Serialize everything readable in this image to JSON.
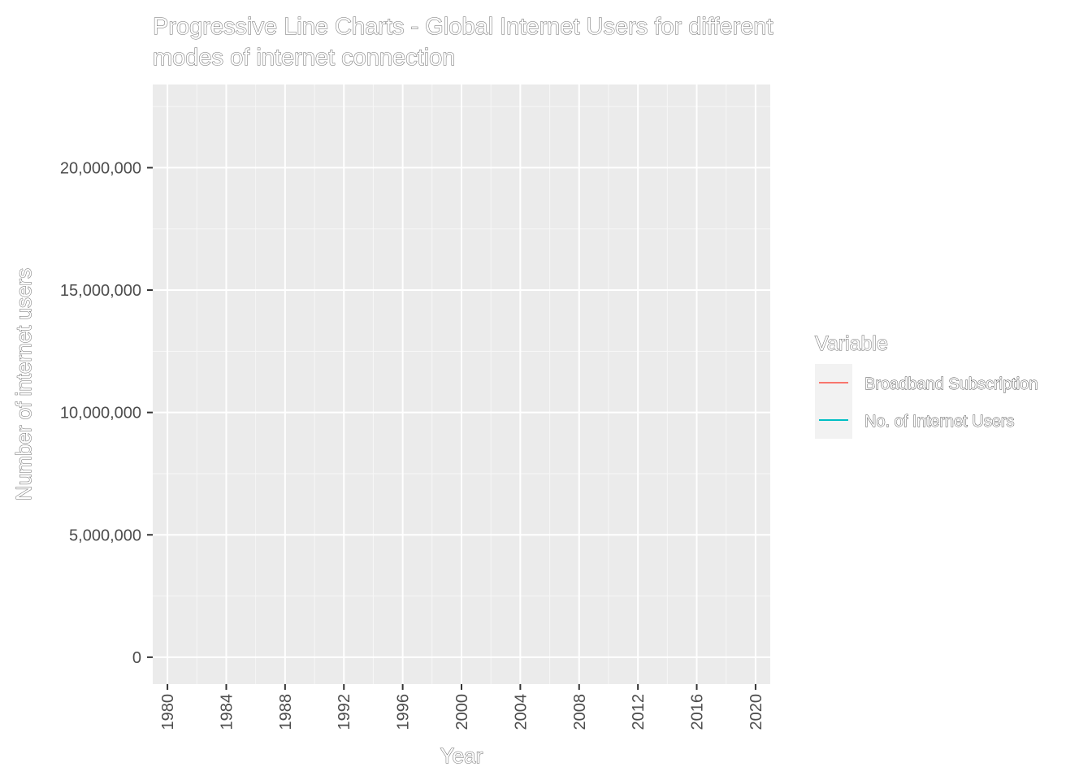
{
  "chart_data": {
    "type": "line",
    "title": "Progressive Line Charts - Global Internet Users for different modes of internet connection",
    "title_lines": [
      "Progressive Line Charts - Global Internet Users for different",
      "modes of internet connection"
    ],
    "xlabel": "Year",
    "ylabel": "Number of internet users",
    "x_ticks": [
      1980,
      1984,
      1988,
      1992,
      1996,
      2000,
      2004,
      2008,
      2012,
      2016,
      2020
    ],
    "y_ticks": [
      0,
      5000000,
      10000000,
      15000000,
      20000000
    ],
    "y_tick_labels": [
      "0",
      "5,000,000",
      "10,000,000",
      "15,000,000",
      "20,000,000"
    ],
    "xlim": [
      1979,
      2021
    ],
    "ylim": [
      -1100000,
      23400000
    ],
    "grid": true,
    "legend_position": "right",
    "legend_title": "Variable",
    "series": [
      {
        "name": "Broadband Subscription",
        "color": "#F8766D",
        "x": [],
        "values": []
      },
      {
        "name": "No. of Internet Users",
        "color": "#00BFC4",
        "x": [],
        "values": []
      }
    ],
    "colors": {
      "panel_background": "#EBEBEB",
      "grid_major": "#FFFFFF",
      "axis_text": "#4D4D4D",
      "legend_key_background": "#F2F2F2"
    }
  }
}
